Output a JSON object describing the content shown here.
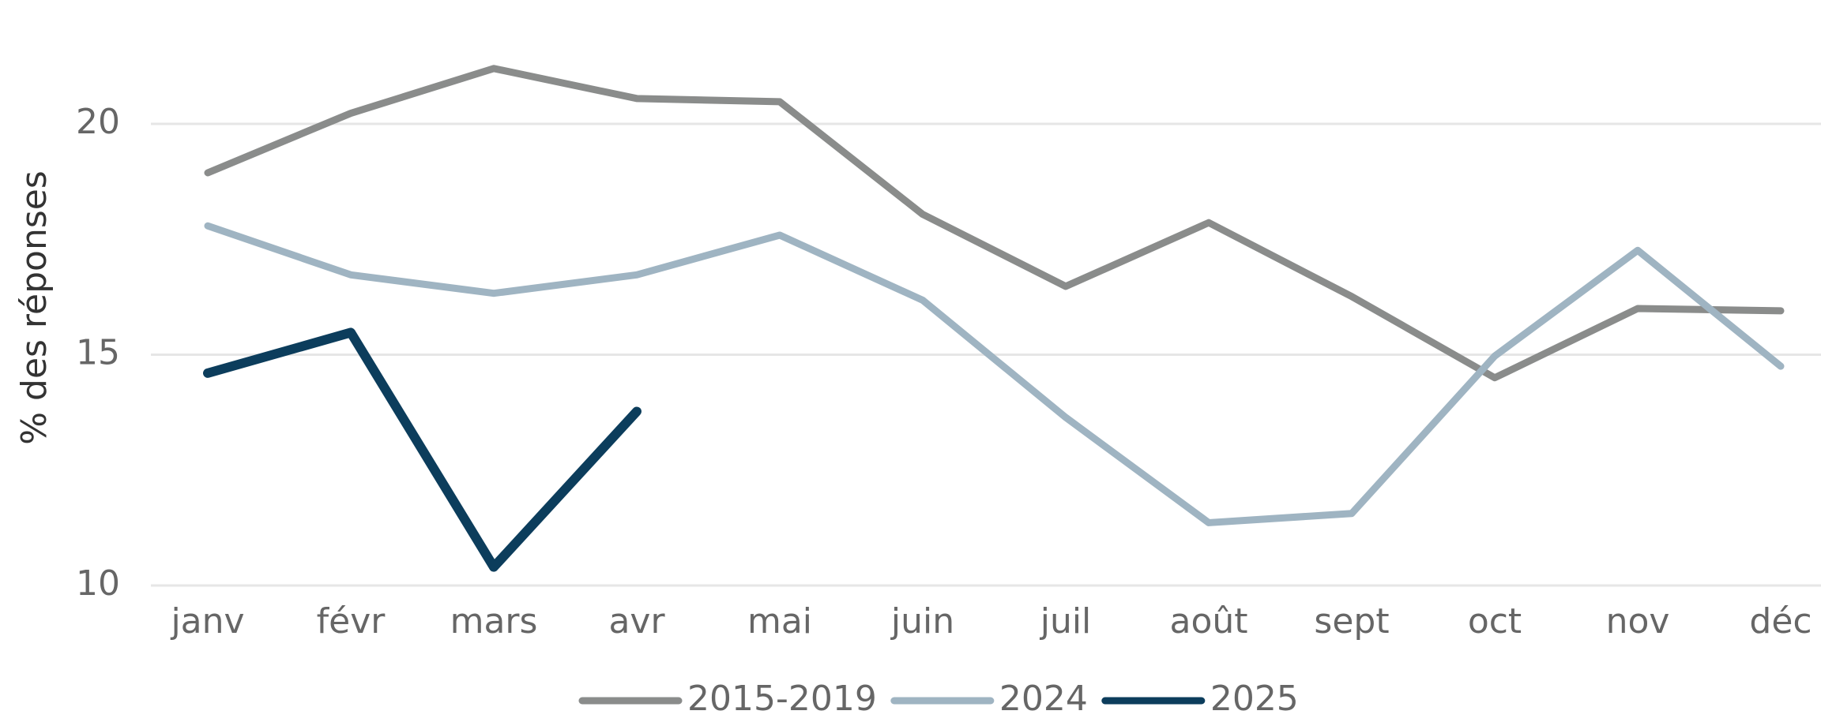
{
  "chart_data": {
    "type": "line",
    "y_label": "% des réponses",
    "categories": [
      "janv",
      "févr",
      "mars",
      "avr",
      "mai",
      "juin",
      "juil",
      "août",
      "sept",
      "oct",
      "nov",
      "déc"
    ],
    "series": [
      {
        "name": "2015-2019",
        "color": "#8a8c8b",
        "values": [
          18.94,
          20.23,
          21.2,
          20.55,
          20.48,
          18.04,
          16.48,
          17.86,
          16.26,
          14.5,
          16.0,
          15.95
        ]
      },
      {
        "name": "2024",
        "color": "#9fb4c2",
        "values": [
          17.79,
          16.73,
          16.33,
          16.73,
          17.59,
          16.18,
          13.64,
          11.36,
          11.56,
          14.97,
          17.26,
          14.75
        ]
      },
      {
        "name": "2025",
        "color": "#0c3d5c",
        "values": [
          14.6,
          15.48,
          10.4,
          13.77,
          null,
          null,
          null,
          null,
          null,
          null,
          null,
          null
        ]
      }
    ],
    "ylim": [
      10,
      22
    ],
    "yticks": [
      10,
      15,
      20
    ],
    "grid": true,
    "legend": "bottom"
  }
}
